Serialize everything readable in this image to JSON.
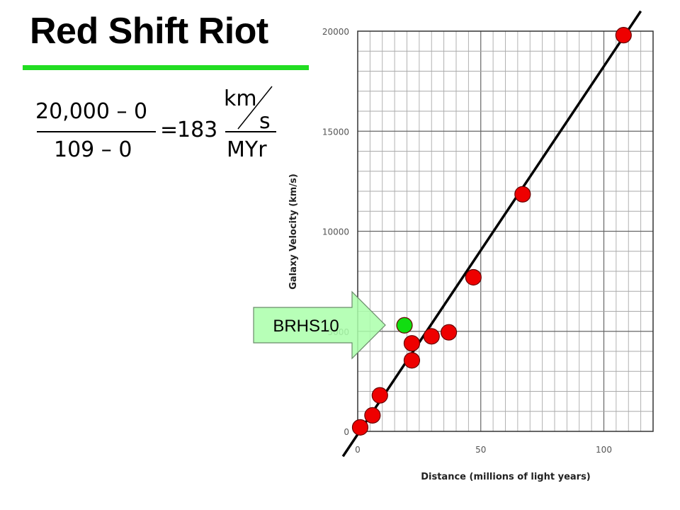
{
  "slide": {
    "title": "Red Shift Riot"
  },
  "equation": {
    "numerator": "20,000 – 0",
    "denominator": "109 – 0",
    "equals": "=",
    "result": "183",
    "unit_numerator": "km",
    "unit_sub": "s",
    "unit_denominator": "MYr"
  },
  "callout": {
    "label": "BRHS10",
    "fill_color": "#aaffaa"
  },
  "chart_data": {
    "type": "scatter",
    "xlabel": "Distance (millions of light years)",
    "ylabel": "Galaxy Velocity (km/s)",
    "xlim": [
      0,
      120
    ],
    "ylim": [
      0,
      20000
    ],
    "x_ticks": [
      0,
      50,
      100
    ],
    "y_ticks": [
      0,
      5000,
      10000,
      15000,
      20000
    ],
    "grid": true,
    "series": [
      {
        "color": "#ee0000",
        "points": [
          {
            "x": 1,
            "y": 200
          },
          {
            "x": 6,
            "y": 800
          },
          {
            "x": 9,
            "y": 1800
          },
          {
            "x": 22,
            "y": 3550
          },
          {
            "x": 22,
            "y": 4400
          },
          {
            "x": 30,
            "y": 4750
          },
          {
            "x": 37,
            "y": 4950
          },
          {
            "x": 47,
            "y": 7700
          },
          {
            "x": 67,
            "y": 11850
          },
          {
            "x": 108,
            "y": 19800
          }
        ]
      },
      {
        "color": "#11dd11",
        "points": [
          {
            "x": 19,
            "y": 5300
          }
        ]
      }
    ],
    "fit_line": {
      "color": "#000000",
      "from": {
        "x": -6,
        "y": -1250
      },
      "to": {
        "x": 115,
        "y": 21000
      }
    }
  }
}
